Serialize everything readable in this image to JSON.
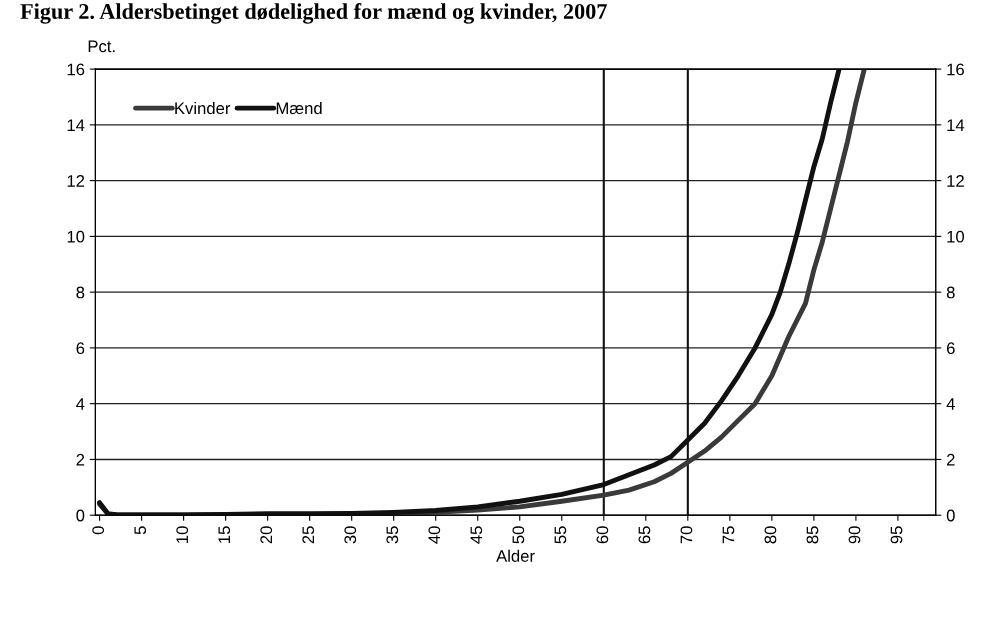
{
  "chart_data": {
    "type": "line",
    "title": "Figur 2. Aldersbetinget dødelighed for mænd og kvinder, 2007",
    "xlabel": "Alder",
    "ylabel": "Pct.",
    "series": [
      {
        "name": "Kvinder",
        "color": "#3a3a3a",
        "x": [
          0,
          1,
          2,
          5,
          10,
          15,
          20,
          25,
          30,
          35,
          40,
          45,
          50,
          55,
          60,
          63,
          66,
          68,
          70,
          72,
          74,
          76,
          78,
          80,
          81,
          82,
          84,
          85,
          86,
          87,
          88,
          89,
          90,
          91
        ],
        "values": [
          0.4,
          0.05,
          0.02,
          0.01,
          0.01,
          0.02,
          0.03,
          0.03,
          0.04,
          0.06,
          0.1,
          0.18,
          0.3,
          0.5,
          0.72,
          0.9,
          1.2,
          1.5,
          1.9,
          2.3,
          2.8,
          3.4,
          4.0,
          5.0,
          5.7,
          6.4,
          7.6,
          8.8,
          9.8,
          11.0,
          12.2,
          13.4,
          14.8,
          16
        ]
      },
      {
        "name": "Mænd",
        "color": "#111111",
        "x": [
          0,
          1,
          2,
          5,
          10,
          15,
          20,
          25,
          30,
          35,
          40,
          45,
          50,
          55,
          60,
          63,
          66,
          68,
          70,
          72,
          74,
          76,
          78,
          80,
          81,
          82,
          83,
          84,
          85,
          86,
          87,
          88
        ],
        "values": [
          0.45,
          0.05,
          0.02,
          0.01,
          0.01,
          0.03,
          0.05,
          0.05,
          0.06,
          0.1,
          0.17,
          0.3,
          0.5,
          0.75,
          1.1,
          1.45,
          1.8,
          2.1,
          2.7,
          3.3,
          4.1,
          5.0,
          6.0,
          7.2,
          8.0,
          9.0,
          10.1,
          11.3,
          12.5,
          13.5,
          14.8,
          16
        ]
      }
    ],
    "xlim": [
      -0.5,
      99.5
    ],
    "xticks": [
      0,
      5,
      10,
      15,
      20,
      25,
      30,
      35,
      40,
      45,
      50,
      55,
      60,
      65,
      70,
      75,
      80,
      85,
      90,
      95
    ],
    "ylim": [
      0,
      16
    ],
    "yticks": [
      0,
      2,
      4,
      6,
      8,
      10,
      12,
      14,
      16
    ],
    "y2lim": [
      0,
      16
    ],
    "y2ticks": [
      0,
      2,
      4,
      6,
      8,
      10,
      12,
      14,
      16
    ],
    "ref_lines": [
      {
        "axis": "x",
        "value": 60,
        "color": "#111111"
      },
      {
        "axis": "x",
        "value": 70,
        "color": "#111111"
      }
    ],
    "grid": "y",
    "legend": "top left",
    "marker": "none",
    "line_style": "solid"
  }
}
